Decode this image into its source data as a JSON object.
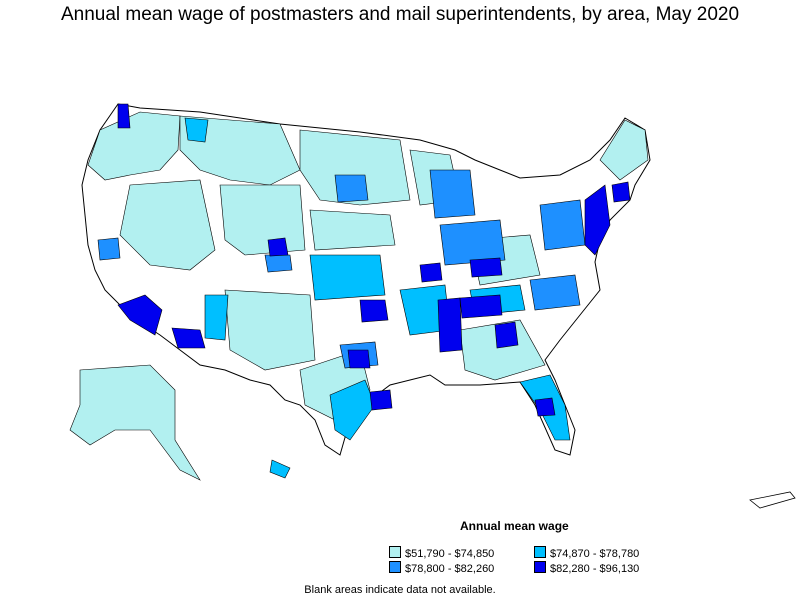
{
  "title": "Annual mean wage of postmasters and mail superintendents, by area, May 2020",
  "legend": {
    "title": "Annual mean wage",
    "items": [
      {
        "label": "$51,790 - $74,850",
        "color": "#b2f0f0"
      },
      {
        "label": "$74,870 - $78,780",
        "color": "#00bfff"
      },
      {
        "label": "$78,800 - $82,260",
        "color": "#1e90ff"
      },
      {
        "label": "$82,280 - $96,130",
        "color": "#0000ee"
      }
    ]
  },
  "footnote": "Blank areas indicate data not available.",
  "colors": {
    "no_data": "#ffffff",
    "border": "#000000"
  }
}
